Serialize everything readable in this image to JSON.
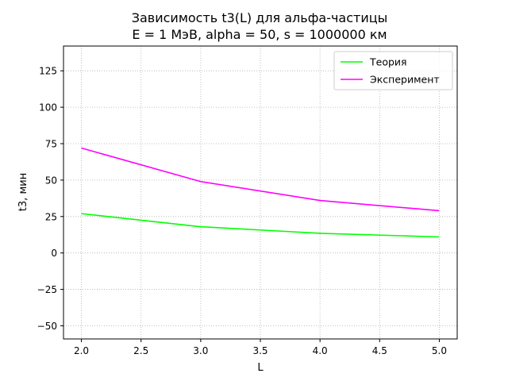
{
  "chart_data": {
    "type": "line",
    "title": "Зависимость t3(L) для альфа-частицы",
    "subtitle": "E = 1 МэВ, alpha = 50, s = 1000000 км",
    "xlabel": "L",
    "ylabel": "t3, мин",
    "x": [
      2.0,
      3.0,
      4.0,
      5.0
    ],
    "series": [
      {
        "name": "Теория",
        "color": "#00ff00",
        "values": [
          27,
          18,
          13.5,
          11
        ]
      },
      {
        "name": "Эксперимент",
        "color": "#ff00ff",
        "values": [
          72,
          49,
          36,
          29
        ]
      }
    ],
    "xlim": [
      1.85,
      5.15
    ],
    "ylim": [
      -59,
      142
    ],
    "xticks": [
      2.0,
      2.5,
      3.0,
      3.5,
      4.0,
      4.5,
      5.0
    ],
    "xtick_labels": [
      "2.0",
      "2.5",
      "3.0",
      "3.5",
      "4.0",
      "4.5",
      "5.0"
    ],
    "yticks": [
      -50,
      -25,
      0,
      25,
      50,
      75,
      100,
      125
    ],
    "ytick_labels": [
      "−50",
      "−25",
      "0",
      "25",
      "50",
      "75",
      "100",
      "125"
    ],
    "grid": true,
    "legend_position": "top-right"
  }
}
